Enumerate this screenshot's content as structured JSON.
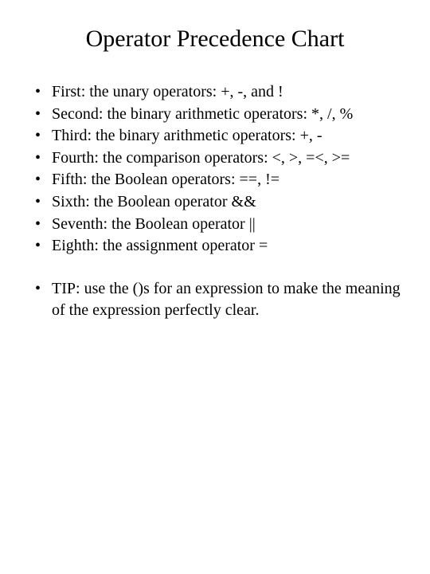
{
  "title": "Operator Precedence Chart",
  "items": {
    "i0": "First: the unary operators: +, -, and !",
    "i1": "Second: the binary arithmetic operators: *, /, %",
    "i2": "Third: the binary arithmetic operators: +, -",
    "i3": "Fourth: the comparison operators: <, >, =<, >=",
    "i4": "Fifth: the Boolean operators: ==, !=",
    "i5": "Sixth: the Boolean operator &&",
    "i6": "Seventh: the Boolean operator ||",
    "i7": "Eighth: the assignment operator =",
    "tip": "TIP: use the ()s for an expression to make the meaning of the expression perfectly clear."
  },
  "typography": {
    "title_fontsize": 30,
    "body_fontsize": 20,
    "font_family": "Times New Roman"
  },
  "colors": {
    "background": "#ffffff",
    "text": "#000000"
  }
}
